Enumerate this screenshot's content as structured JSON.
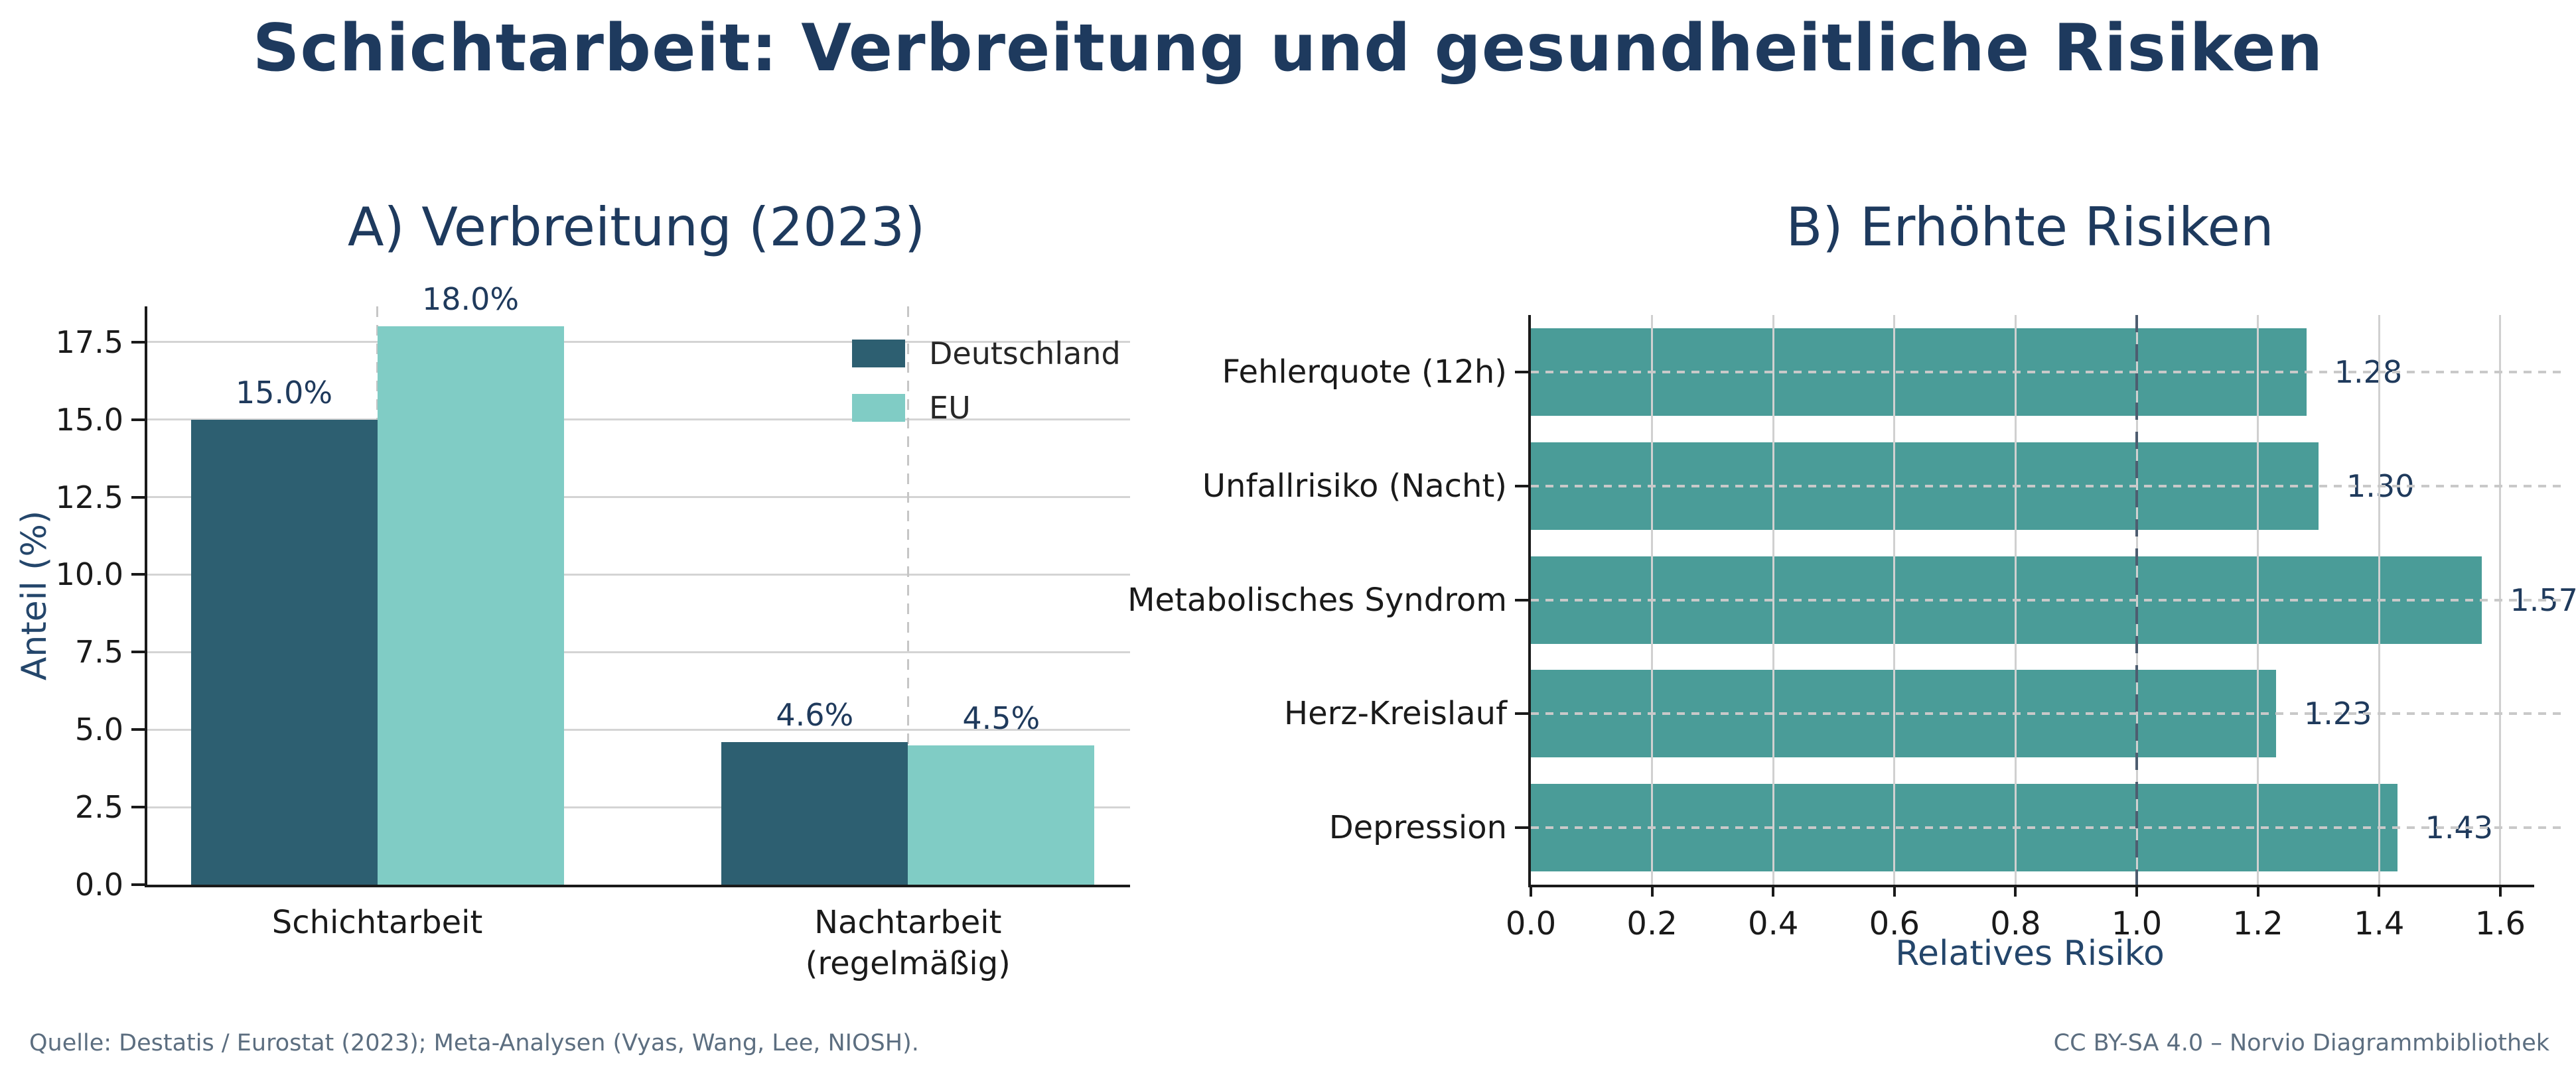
{
  "page": {
    "title": "Schichtarbeit: Verbreitung und gesundheitliche Risiken",
    "footer_left": "Quelle: Destatis / Eurostat (2023); Meta-Analysen (Vyas, Wang, Lee, NIOSH).",
    "footer_right": "CC BY-SA 4.0 – Norvio Diagrammbibliothek"
  },
  "colors": {
    "title_navy": "#1e3a5e",
    "label_navy": "#1f3a5c",
    "axis_text": "#1a1a1a",
    "footer_slate": "#5c6e80",
    "grid_light": "#d4d4d4",
    "deutschland_teal_dark": "#2d5f71",
    "eu_teal_light": "#80ccc5",
    "risk_teal": "#4a9c98",
    "refline_slate": "#4e5d70"
  },
  "chart_data": [
    {
      "id": "A",
      "type": "bar",
      "title": "A) Verbreitung (2023)",
      "categories": [
        "Schichtarbeit",
        "Nachtarbeit\n(regelmäßig)"
      ],
      "series": [
        {
          "name": "Deutschland",
          "color": "#2d5f71",
          "values": [
            15.0,
            4.6
          ],
          "labels": [
            "15.0%",
            "4.6%"
          ]
        },
        {
          "name": "EU",
          "color": "#80ccc5",
          "values": [
            18.0,
            4.5
          ],
          "labels": [
            "18.0%",
            "4.5%"
          ]
        }
      ],
      "ylabel": "Anteil (%)",
      "ylim": [
        0,
        18.65
      ],
      "yticks": [
        {
          "v": 0.0,
          "label": "0.0"
        },
        {
          "v": 2.5,
          "label": "2.5"
        },
        {
          "v": 5.0,
          "label": "5.0"
        },
        {
          "v": 7.5,
          "label": "7.5"
        },
        {
          "v": 10.0,
          "label": "10.0"
        },
        {
          "v": 12.5,
          "label": "12.5"
        },
        {
          "v": 15.0,
          "label": "15.0"
        },
        {
          "v": 17.5,
          "label": "17.5"
        }
      ],
      "grid": {
        "horizontal": "solid",
        "vertical": "dashed"
      },
      "legend_position": "upper right"
    },
    {
      "id": "B",
      "type": "bar-horizontal",
      "title": "B) Erhöhte Risiken",
      "categories": [
        "Fehlerquote (12h)",
        "Unfallrisiko (Nacht)",
        "Metabolisches Syndrom",
        "Herz-Kreislauf",
        "Depression"
      ],
      "values": [
        1.28,
        1.3,
        1.57,
        1.23,
        1.43
      ],
      "labels": [
        "1.28",
        "1.30",
        "1.57",
        "1.23",
        "1.43"
      ],
      "color": "#4a9c98",
      "xlabel": "Relatives Risiko",
      "xlim": [
        0,
        1.656
      ],
      "xticks": [
        {
          "v": 0.0,
          "label": "0.0"
        },
        {
          "v": 0.2,
          "label": "0.2"
        },
        {
          "v": 0.4,
          "label": "0.4"
        },
        {
          "v": 0.6,
          "label": "0.6"
        },
        {
          "v": 0.8,
          "label": "0.8"
        },
        {
          "v": 1.0,
          "label": "1.0"
        },
        {
          "v": 1.2,
          "label": "1.2"
        },
        {
          "v": 1.4,
          "label": "1.4"
        },
        {
          "v": 1.6,
          "label": "1.6"
        }
      ],
      "grid": {
        "horizontal": "dashed",
        "vertical": "solid"
      },
      "refline": {
        "x": 1.0,
        "style": "dashed",
        "color": "#4e5d70"
      }
    }
  ]
}
